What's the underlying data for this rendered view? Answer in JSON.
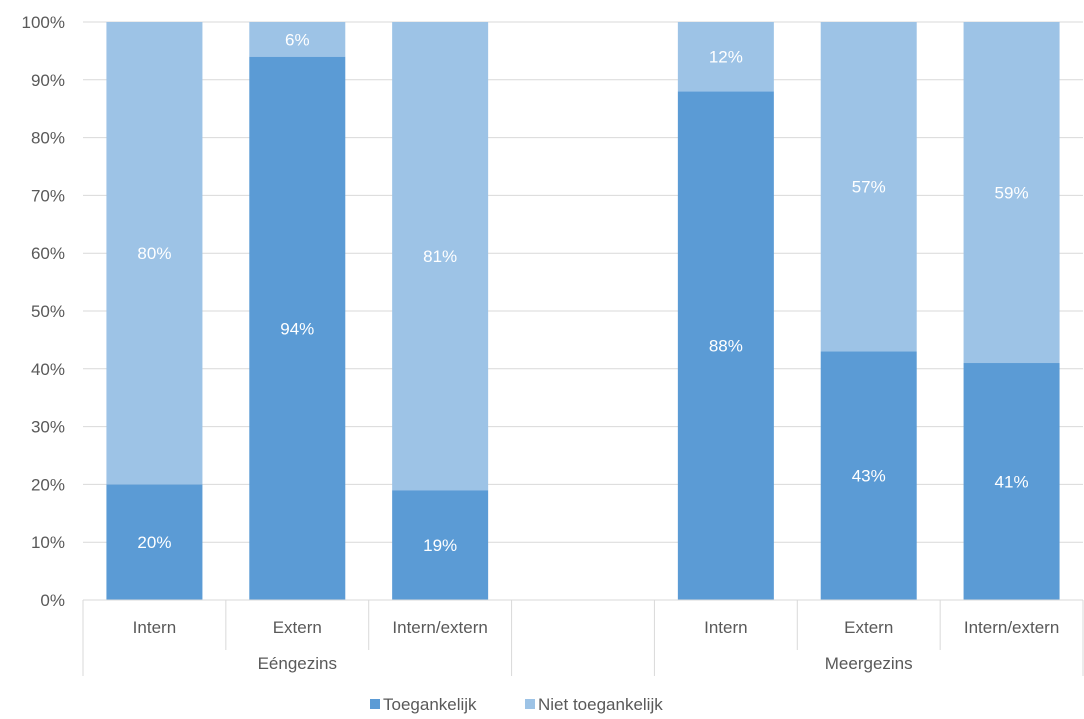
{
  "chart_data": {
    "type": "bar",
    "stacked": true,
    "percent": true,
    "ylim": [
      0,
      100
    ],
    "yticks": [
      "0%",
      "10%",
      "20%",
      "30%",
      "40%",
      "50%",
      "60%",
      "70%",
      "80%",
      "90%",
      "100%"
    ],
    "grid": true,
    "legend_position": "bottom",
    "groups": [
      {
        "label": "Eéngezins",
        "categories": [
          "Intern",
          "Extern",
          "Intern/extern"
        ]
      },
      {
        "label": "",
        "categories": [
          ""
        ]
      },
      {
        "label": "Meergezins",
        "categories": [
          "Intern",
          "Extern",
          "Intern/extern"
        ]
      }
    ],
    "series": [
      {
        "name": "Toegankelijk",
        "color": "#5b9bd5",
        "values": [
          20,
          94,
          19,
          null,
          88,
          43,
          41
        ],
        "labels": [
          "20%",
          "94%",
          "19%",
          "",
          "88%",
          "43%",
          "41%"
        ]
      },
      {
        "name": "Niet toegankelijk",
        "color": "#9dc3e6",
        "values": [
          80,
          6,
          81,
          null,
          12,
          57,
          59
        ],
        "labels": [
          "80%",
          "6%",
          "81%",
          "",
          "12%",
          "57%",
          "59%"
        ]
      }
    ]
  }
}
